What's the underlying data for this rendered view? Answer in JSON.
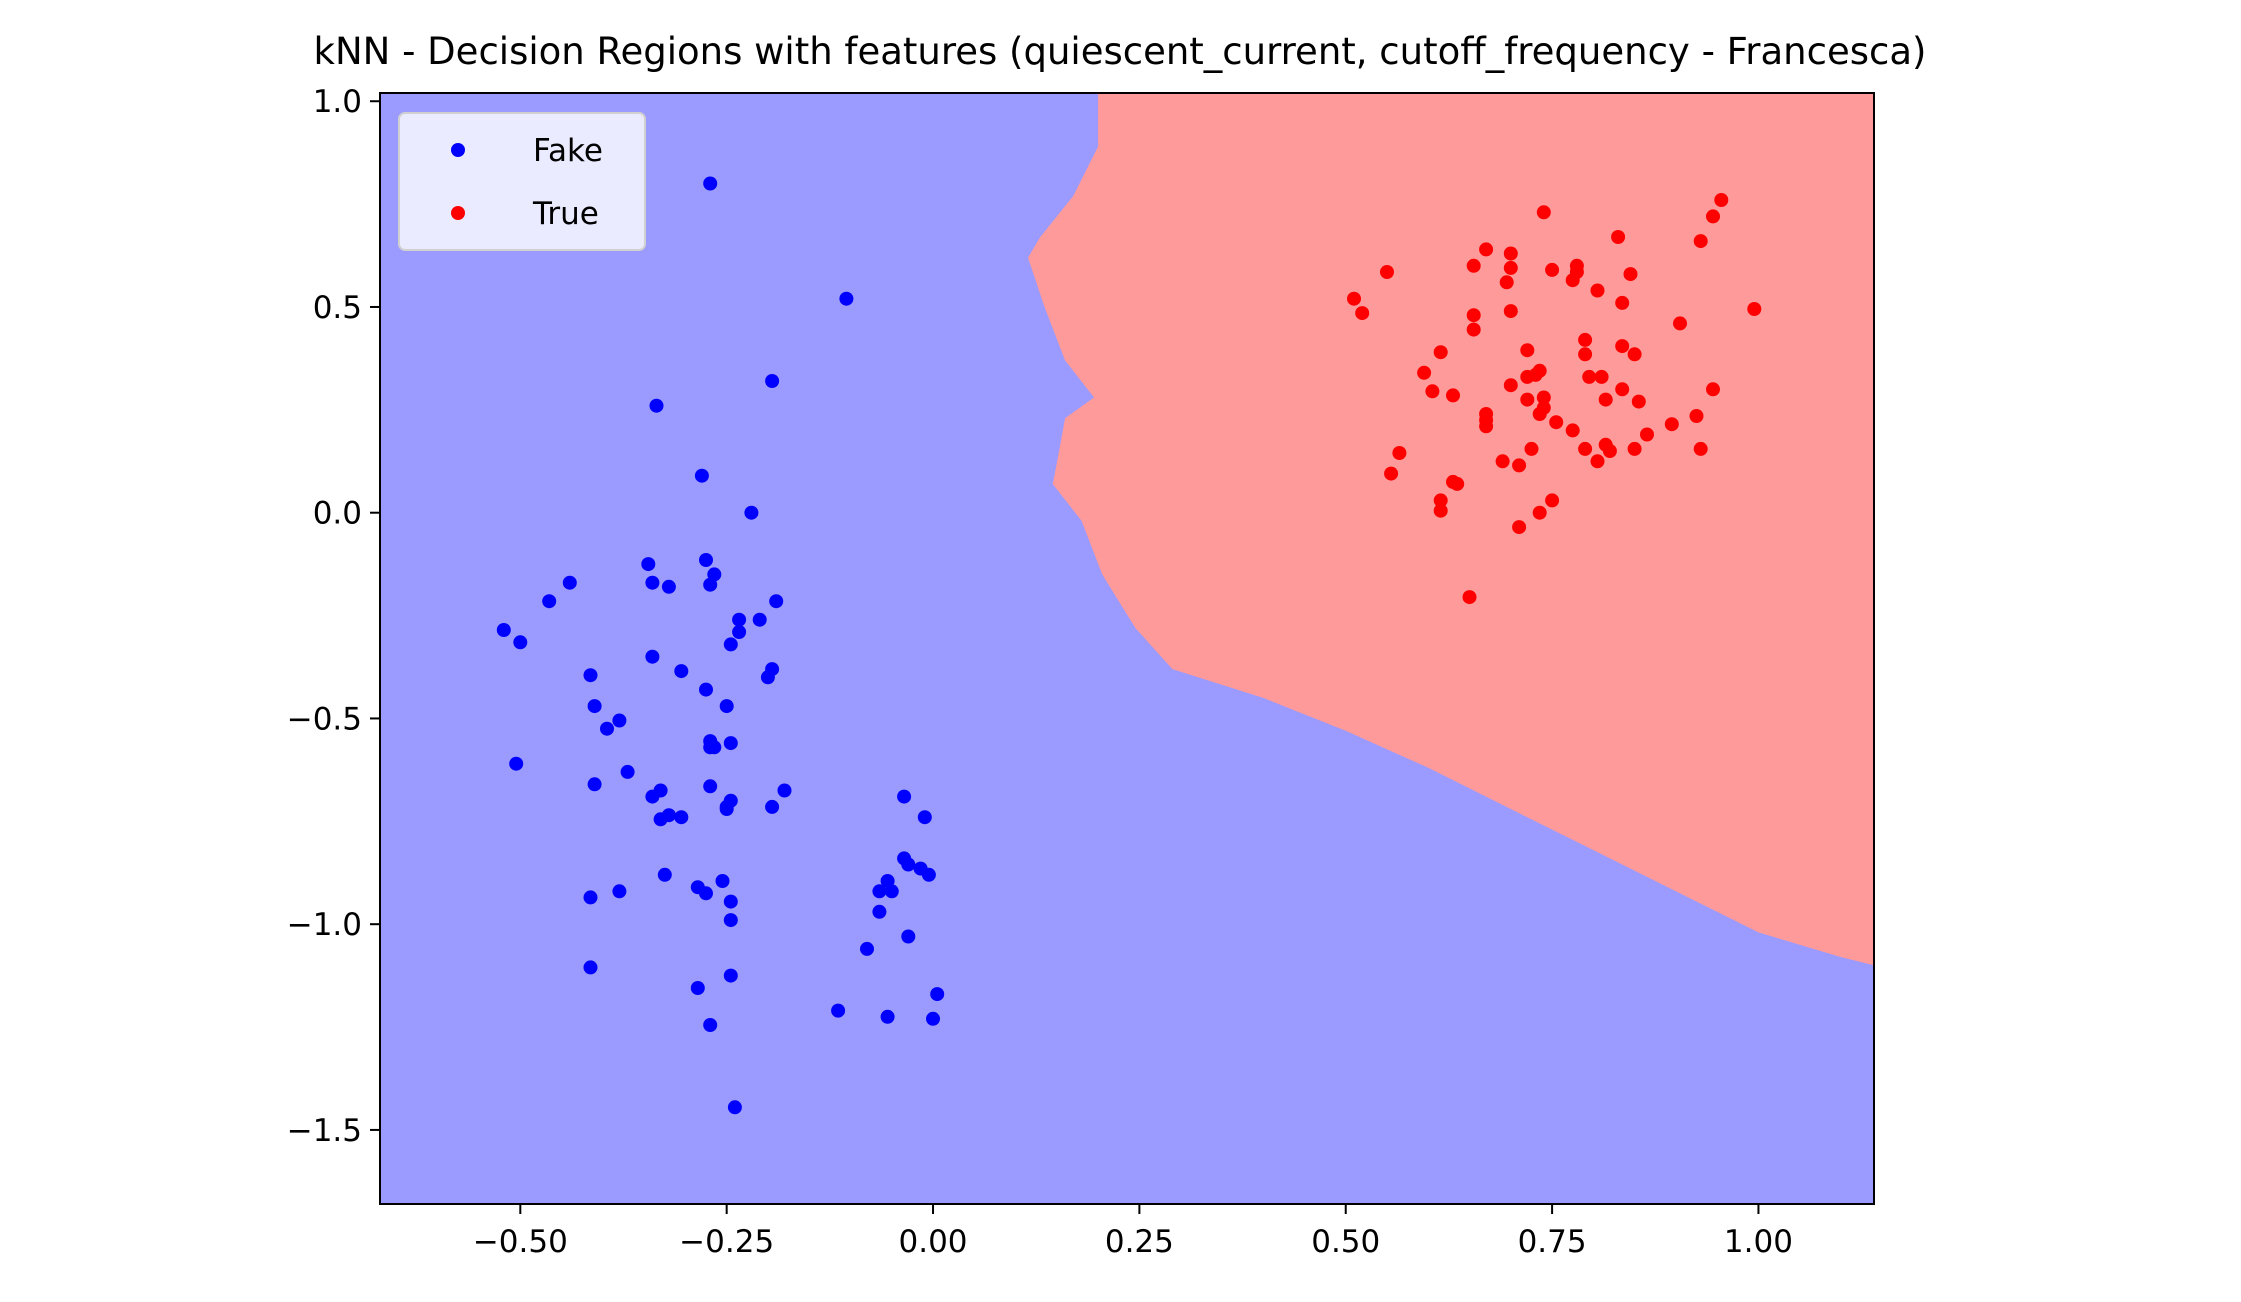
{
  "colors": {
    "fake_region": "#9a9aff",
    "true_region": "#ff9a9a",
    "fake_points": "#0000ff",
    "true_points": "#ff0000"
  },
  "chart_data": {
    "type": "scatter",
    "title": "kNN - Decision Regions with features (quiescent_current, cutoff_frequency - Francesca)",
    "xlabel": "",
    "ylabel": "",
    "xlim": [
      -0.67,
      1.14
    ],
    "ylim": [
      -1.68,
      1.02
    ],
    "xticks": [
      {
        "value": -0.5,
        "label": "−0.50"
      },
      {
        "value": -0.25,
        "label": "−0.25"
      },
      {
        "value": 0.0,
        "label": "0.00"
      },
      {
        "value": 0.25,
        "label": "0.25"
      },
      {
        "value": 0.5,
        "label": "0.50"
      },
      {
        "value": 0.75,
        "label": "0.75"
      },
      {
        "value": 1.0,
        "label": "1.00"
      }
    ],
    "yticks": [
      {
        "value": 1.0,
        "label": "1.0"
      },
      {
        "value": 0.5,
        "label": "0.5"
      },
      {
        "value": 0.0,
        "label": "0.0"
      },
      {
        "value": -0.5,
        "label": "−0.5"
      },
      {
        "value": -1.0,
        "label": "−1.0"
      },
      {
        "value": -1.5,
        "label": "−1.5"
      }
    ],
    "grid": false,
    "legend": {
      "placement": "top-left",
      "entries": [
        "Fake",
        "True"
      ]
    },
    "decision_boundary": [
      [
        0.2,
        1.02
      ],
      [
        0.2,
        0.89
      ],
      [
        0.17,
        0.77
      ],
      [
        0.13,
        0.67
      ],
      [
        0.115,
        0.62
      ],
      [
        0.135,
        0.5
      ],
      [
        0.16,
        0.37
      ],
      [
        0.195,
        0.28
      ],
      [
        0.16,
        0.23
      ],
      [
        0.15,
        0.12
      ],
      [
        0.145,
        0.07
      ],
      [
        0.18,
        -0.02
      ],
      [
        0.205,
        -0.15
      ],
      [
        0.245,
        -0.28
      ],
      [
        0.29,
        -0.38
      ],
      [
        0.4,
        -0.45
      ],
      [
        0.5,
        -0.53
      ],
      [
        0.6,
        -0.62
      ],
      [
        0.7,
        -0.72
      ],
      [
        0.8,
        -0.82
      ],
      [
        0.9,
        -0.92
      ],
      [
        1.0,
        -1.02
      ],
      [
        1.1,
        -1.08
      ],
      [
        1.14,
        -1.1
      ]
    ],
    "series": [
      {
        "name": "Fake",
        "points": [
          [
            -0.27,
            0.8
          ],
          [
            -0.105,
            0.52
          ],
          [
            -0.195,
            0.32
          ],
          [
            -0.335,
            0.26
          ],
          [
            -0.28,
            0.09
          ],
          [
            -0.22,
            0.0
          ],
          [
            -0.52,
            -0.285
          ],
          [
            -0.5,
            -0.315
          ],
          [
            -0.465,
            -0.215
          ],
          [
            -0.44,
            -0.17
          ],
          [
            -0.345,
            -0.125
          ],
          [
            -0.34,
            -0.17
          ],
          [
            -0.32,
            -0.18
          ],
          [
            -0.275,
            -0.115
          ],
          [
            -0.27,
            -0.175
          ],
          [
            -0.265,
            -0.15
          ],
          [
            -0.19,
            -0.215
          ],
          [
            -0.21,
            -0.26
          ],
          [
            -0.235,
            -0.26
          ],
          [
            -0.235,
            -0.29
          ],
          [
            -0.245,
            -0.32
          ],
          [
            -0.34,
            -0.35
          ],
          [
            -0.415,
            -0.395
          ],
          [
            -0.305,
            -0.385
          ],
          [
            -0.195,
            -0.38
          ],
          [
            -0.2,
            -0.4
          ],
          [
            -0.275,
            -0.43
          ],
          [
            -0.25,
            -0.47
          ],
          [
            -0.41,
            -0.47
          ],
          [
            -0.38,
            -0.505
          ],
          [
            -0.395,
            -0.525
          ],
          [
            -0.505,
            -0.61
          ],
          [
            -0.27,
            -0.555
          ],
          [
            -0.245,
            -0.56
          ],
          [
            -0.265,
            -0.57
          ],
          [
            -0.27,
            -0.57
          ],
          [
            -0.41,
            -0.66
          ],
          [
            -0.37,
            -0.63
          ],
          [
            -0.33,
            -0.675
          ],
          [
            -0.34,
            -0.69
          ],
          [
            -0.27,
            -0.665
          ],
          [
            -0.245,
            -0.7
          ],
          [
            -0.25,
            -0.715
          ],
          [
            -0.33,
            -0.745
          ],
          [
            -0.32,
            -0.735
          ],
          [
            -0.305,
            -0.74
          ],
          [
            -0.25,
            -0.72
          ],
          [
            -0.18,
            -0.675
          ],
          [
            -0.195,
            -0.715
          ],
          [
            -0.035,
            -0.69
          ],
          [
            -0.01,
            -0.74
          ],
          [
            -0.035,
            -0.84
          ],
          [
            -0.03,
            -0.855
          ],
          [
            -0.015,
            -0.865
          ],
          [
            -0.005,
            -0.88
          ],
          [
            -0.055,
            -0.895
          ],
          [
            -0.065,
            -0.92
          ],
          [
            -0.05,
            -0.92
          ],
          [
            -0.325,
            -0.88
          ],
          [
            -0.255,
            -0.895
          ],
          [
            -0.285,
            -0.91
          ],
          [
            -0.275,
            -0.925
          ],
          [
            -0.245,
            -0.945
          ],
          [
            -0.38,
            -0.92
          ],
          [
            -0.415,
            -0.935
          ],
          [
            -0.245,
            -0.99
          ],
          [
            -0.065,
            -0.97
          ],
          [
            -0.03,
            -1.03
          ],
          [
            -0.08,
            -1.06
          ],
          [
            -0.415,
            -1.105
          ],
          [
            -0.245,
            -1.125
          ],
          [
            -0.285,
            -1.155
          ],
          [
            0.005,
            -1.17
          ],
          [
            -0.115,
            -1.21
          ],
          [
            -0.055,
            -1.225
          ],
          [
            0.0,
            -1.23
          ],
          [
            -0.27,
            -1.245
          ],
          [
            -0.24,
            -1.445
          ]
        ]
      },
      {
        "name": "True",
        "points": [
          [
            0.955,
            0.76
          ],
          [
            0.945,
            0.72
          ],
          [
            0.74,
            0.73
          ],
          [
            0.83,
            0.67
          ],
          [
            0.93,
            0.66
          ],
          [
            0.67,
            0.64
          ],
          [
            0.7,
            0.63
          ],
          [
            0.655,
            0.6
          ],
          [
            0.55,
            0.585
          ],
          [
            0.7,
            0.595
          ],
          [
            0.75,
            0.59
          ],
          [
            0.78,
            0.585
          ],
          [
            0.78,
            0.6
          ],
          [
            0.845,
            0.58
          ],
          [
            0.695,
            0.56
          ],
          [
            0.775,
            0.565
          ],
          [
            0.805,
            0.54
          ],
          [
            0.51,
            0.52
          ],
          [
            0.835,
            0.51
          ],
          [
            0.52,
            0.485
          ],
          [
            0.655,
            0.48
          ],
          [
            0.7,
            0.49
          ],
          [
            0.995,
            0.495
          ],
          [
            0.905,
            0.46
          ],
          [
            0.655,
            0.445
          ],
          [
            0.79,
            0.42
          ],
          [
            0.835,
            0.405
          ],
          [
            0.615,
            0.39
          ],
          [
            0.72,
            0.395
          ],
          [
            0.79,
            0.385
          ],
          [
            0.85,
            0.385
          ],
          [
            0.72,
            0.33
          ],
          [
            0.73,
            0.335
          ],
          [
            0.595,
            0.34
          ],
          [
            0.735,
            0.345
          ],
          [
            0.795,
            0.33
          ],
          [
            0.81,
            0.33
          ],
          [
            0.7,
            0.31
          ],
          [
            0.835,
            0.3
          ],
          [
            0.945,
            0.3
          ],
          [
            0.605,
            0.295
          ],
          [
            0.63,
            0.285
          ],
          [
            0.74,
            0.28
          ],
          [
            0.72,
            0.275
          ],
          [
            0.815,
            0.275
          ],
          [
            0.855,
            0.27
          ],
          [
            0.67,
            0.24
          ],
          [
            0.735,
            0.24
          ],
          [
            0.74,
            0.255
          ],
          [
            0.925,
            0.235
          ],
          [
            0.67,
            0.225
          ],
          [
            0.755,
            0.22
          ],
          [
            0.67,
            0.21
          ],
          [
            0.895,
            0.215
          ],
          [
            0.775,
            0.2
          ],
          [
            0.865,
            0.19
          ],
          [
            0.565,
            0.145
          ],
          [
            0.69,
            0.125
          ],
          [
            0.725,
            0.155
          ],
          [
            0.79,
            0.155
          ],
          [
            0.815,
            0.165
          ],
          [
            0.82,
            0.15
          ],
          [
            0.805,
            0.125
          ],
          [
            0.85,
            0.155
          ],
          [
            0.93,
            0.155
          ],
          [
            0.555,
            0.095
          ],
          [
            0.63,
            0.075
          ],
          [
            0.635,
            0.07
          ],
          [
            0.71,
            0.115
          ],
          [
            0.615,
            0.03
          ],
          [
            0.615,
            0.005
          ],
          [
            0.735,
            0.0
          ],
          [
            0.75,
            0.03
          ],
          [
            0.71,
            -0.035
          ],
          [
            0.65,
            -0.205
          ]
        ]
      }
    ]
  }
}
